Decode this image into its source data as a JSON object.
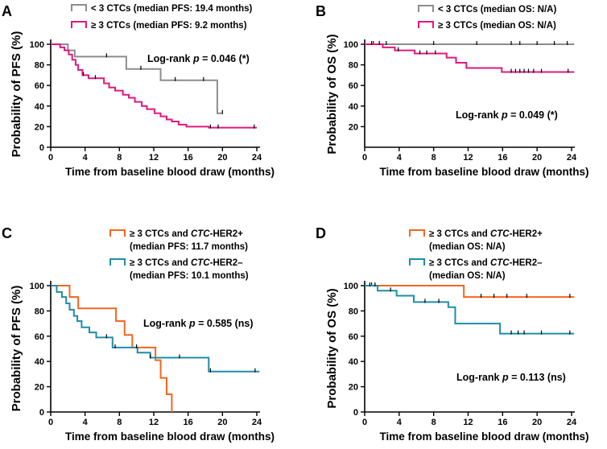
{
  "chart_data": [
    {
      "type": "line",
      "panel": "A",
      "title": "",
      "ylabel": "Probability of  PFS (%)",
      "xlabel": "Time from baseline blood draw  (months)",
      "xlim": [
        0,
        24
      ],
      "ylim": [
        0,
        100
      ],
      "xticks": [
        0,
        4,
        8,
        12,
        16,
        20,
        24
      ],
      "yticks": [
        0,
        20,
        40,
        60,
        80,
        100
      ],
      "annotation": {
        "pre": "Log-rank ",
        "p": "p",
        "post": " = 0.046 (*)"
      },
      "series": [
        {
          "name": "< 3 CTCs (median PFS: 19.4 months)",
          "color": "#8c8c8c",
          "x": [
            0,
            2,
            2.8,
            8.8,
            12.8,
            19.4,
            20
          ],
          "y": [
            100,
            94,
            88,
            76,
            65,
            33,
            33
          ],
          "censor_x": [
            6.5,
            10.5,
            14.5,
            17.8,
            20
          ]
        },
        {
          "name": "≥ 3 CTCs (median PFS: 9.2 months)",
          "color": "#e0197d",
          "x": [
            0,
            1.1,
            1.6,
            2.1,
            2.5,
            2.9,
            3.2,
            3.7,
            4.4,
            6.2,
            6.8,
            7.5,
            8.4,
            9.1,
            9.8,
            10.6,
            11.2,
            12.1,
            12.8,
            13.5,
            14.1,
            14.9,
            15.8,
            18.4,
            19.5,
            24
          ],
          "y": [
            100,
            97,
            94,
            90,
            85,
            80,
            75,
            70,
            67,
            62,
            58,
            55,
            51,
            48,
            44,
            40,
            37,
            33,
            30,
            27,
            25,
            22,
            20,
            19,
            19,
            19
          ],
          "censor_x": [
            3.8,
            5.2,
            18.6,
            19.5,
            23.7
          ]
        }
      ]
    },
    {
      "type": "line",
      "panel": "B",
      "title": "",
      "ylabel": "Probability of  OS (%)",
      "xlabel": "Time from baseline blood draw  (months)",
      "xlim": [
        0,
        24
      ],
      "ylim": [
        0,
        100
      ],
      "xticks": [
        0,
        4,
        8,
        12,
        16,
        20,
        24
      ],
      "yticks": [
        20,
        40,
        60,
        80,
        100
      ],
      "annotation": {
        "pre": "Log-rank ",
        "p": "p",
        "post": " = 0.049 (*)"
      },
      "series": [
        {
          "name": "< 3 CTCs (median OS: N/A)",
          "color": "#8c8c8c",
          "x": [
            0,
            24.3
          ],
          "y": [
            100,
            100
          ],
          "censor_x": [
            1,
            2.5,
            8,
            13,
            17,
            18,
            20,
            22,
            23.5
          ]
        },
        {
          "name": "≥ 3 CTCs (median OS: N/A)",
          "color": "#e0197d",
          "x": [
            0,
            2.1,
            3.5,
            5.8,
            9.5,
            10.6,
            11.8,
            15.9,
            24.3
          ],
          "y": [
            100,
            97,
            94,
            91,
            87,
            82,
            77,
            73,
            73
          ],
          "censor_x": [
            0.8,
            1.7,
            3.9,
            6.4,
            7.2,
            8.2,
            17,
            17.5,
            18,
            18.5,
            19,
            19.6,
            20.5,
            23.6
          ]
        }
      ]
    },
    {
      "type": "line",
      "panel": "C",
      "title": "",
      "ylabel": "Probability of  PFS (%)",
      "xlabel": "Time from baseline blood draw  (months)",
      "xlim": [
        0,
        24
      ],
      "ylim": [
        0,
        100
      ],
      "xticks": [
        0,
        4,
        8,
        12,
        16,
        20,
        24
      ],
      "yticks": [
        0,
        20,
        40,
        60,
        80,
        100
      ],
      "annotation": {
        "pre": "Log-rank ",
        "p": "p",
        "post": " = 0.585 (ns)"
      },
      "series": [
        {
          "name_pre": "≥ 3 CTCs and ",
          "name_it": "CTC",
          "name_post": "-HER2+",
          "name_line2": "(median PFS: 11.7 months)",
          "color": "#f5661f",
          "x": [
            0,
            2.2,
            3.2,
            3.9,
            7.6,
            8.6,
            9.5,
            12.2,
            12.8,
            13.5,
            14.1
          ],
          "y": [
            100,
            91,
            82,
            82,
            72,
            61,
            51,
            41,
            27,
            14,
            0
          ],
          "censor_x": []
        },
        {
          "name_pre": "≥ 3 CTCs and ",
          "name_it": "CTC",
          "name_post": "-HER2–",
          "name_line2": "(median PFS: 10.1 months)",
          "color": "#1f8da8",
          "x": [
            0,
            0.7,
            1.3,
            1.8,
            2.2,
            2.7,
            3.1,
            3.6,
            4.5,
            5.3,
            7.2,
            10.1,
            11.6,
            18.4,
            24.3
          ],
          "y": [
            100,
            95,
            91,
            86,
            81,
            76,
            72,
            67,
            63,
            59,
            51,
            47,
            43,
            32,
            32
          ],
          "censor_x": [
            6.5,
            7.5,
            10,
            11.6,
            15,
            18.6,
            23.8
          ]
        }
      ]
    },
    {
      "type": "line",
      "panel": "D",
      "title": "",
      "ylabel": "Probability of  OS (%)",
      "xlabel": "Time from baseline blood draw  (months)",
      "xlim": [
        0,
        24
      ],
      "ylim": [
        0,
        100
      ],
      "xticks": [
        0,
        4,
        8,
        12,
        16,
        20,
        24
      ],
      "yticks": [
        0,
        20,
        40,
        60,
        80,
        100
      ],
      "annotation": {
        "pre": "Log-rank ",
        "p": "p",
        "post": " = 0.113 (ns)"
      },
      "series": [
        {
          "name_pre": "≥ 3 CTCs and ",
          "name_it": "CTC",
          "name_post": "-HER2+",
          "name_line2": "(median OS: N/A)",
          "color": "#f5661f",
          "x": [
            0,
            11.5,
            24.3
          ],
          "y": [
            100,
            91,
            91
          ],
          "censor_x": [
            0.8,
            13.5,
            15,
            16.5,
            18.8,
            23.8
          ]
        },
        {
          "name_pre": "≥ 3 CTCs and ",
          "name_it": "CTC",
          "name_post": "-HER2–",
          "name_line2": "(median OS: N/A)",
          "color": "#1f8da8",
          "x": [
            0,
            1.5,
            3.7,
            5.7,
            9.7,
            10.5,
            15.7,
            24.3
          ],
          "y": [
            100,
            96,
            92,
            87,
            83,
            70,
            62,
            62
          ],
          "censor_x": [
            0.6,
            1.2,
            3,
            7,
            8.6,
            17,
            17.8,
            18.5,
            20.5,
            23.8
          ]
        }
      ]
    }
  ]
}
